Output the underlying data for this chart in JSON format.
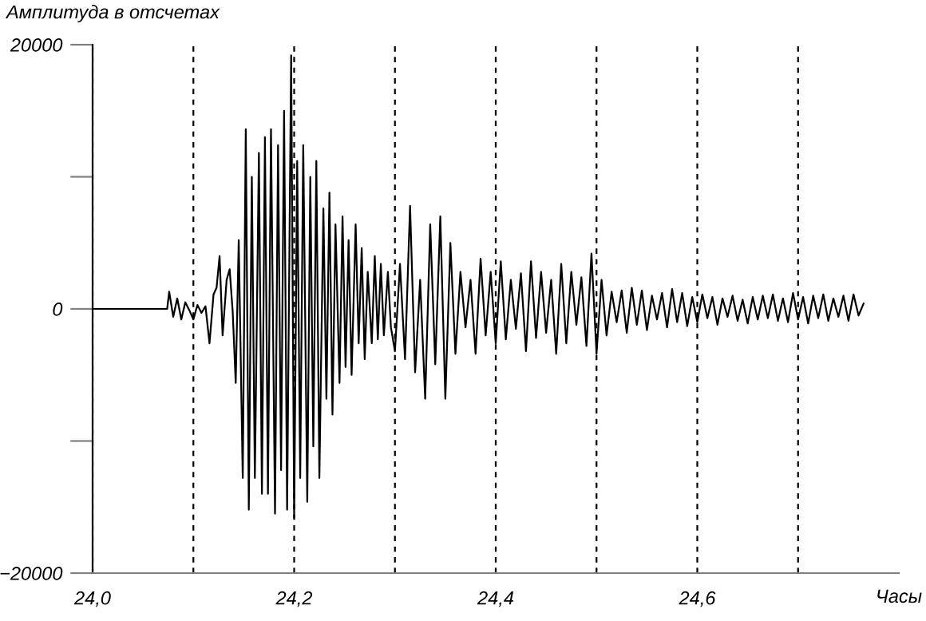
{
  "chart_data": {
    "type": "line",
    "ylabel": "Амплитуда в отсчетах",
    "xlabel": "Часы",
    "xlim": [
      24.0,
      24.8
    ],
    "ylim": [
      -20000,
      20000
    ],
    "xticks": [
      {
        "value": 24.0,
        "label": "24,0"
      },
      {
        "value": 24.1,
        "label": null
      },
      {
        "value": 24.2,
        "label": "24,2"
      },
      {
        "value": 24.3,
        "label": null
      },
      {
        "value": 24.4,
        "label": "24,4"
      },
      {
        "value": 24.5,
        "label": null
      },
      {
        "value": 24.6,
        "label": "24,6"
      },
      {
        "value": 24.7,
        "label": null
      }
    ],
    "yticks": [
      {
        "value": -20000,
        "label": "−20000"
      },
      {
        "value": -10000,
        "label": null
      },
      0,
      {
        "value": 10000,
        "label": null
      },
      20000
    ],
    "grid": "x",
    "marker": "none",
    "line_style": "solid",
    "series": [
      {
        "color": "#000000",
        "x": [
          24.0,
          24.074,
          24.076,
          24.08,
          24.084,
          24.088,
          24.092,
          24.096,
          24.1,
          24.104,
          24.108,
          24.112,
          24.116,
          24.12,
          24.123,
          24.126,
          24.129,
          24.133,
          24.136,
          24.139,
          24.142,
          24.145,
          24.149,
          24.152,
          24.155,
          24.158,
          24.161,
          24.165,
          24.168,
          24.171,
          24.174,
          24.177,
          24.181,
          24.184,
          24.187,
          24.19,
          24.193,
          24.197,
          24.2,
          24.203,
          24.206,
          24.209,
          24.213,
          24.216,
          24.219,
          24.222,
          24.225,
          24.229,
          24.232,
          24.235,
          24.238,
          24.241,
          24.245,
          24.248,
          24.251,
          24.254,
          24.257,
          24.261,
          24.264,
          24.267,
          24.27,
          24.273,
          24.277,
          24.28,
          24.283,
          24.286,
          24.289,
          24.293,
          24.296,
          24.3,
          24.305,
          24.31,
          24.315,
          24.32,
          24.325,
          24.33,
          24.335,
          24.34,
          24.345,
          24.35,
          24.355,
          24.36,
          24.365,
          24.37,
          24.375,
          24.38,
          24.385,
          24.39,
          24.395,
          24.4,
          24.405,
          24.41,
          24.415,
          24.42,
          24.425,
          24.43,
          24.435,
          24.44,
          24.445,
          24.45,
          24.455,
          24.46,
          24.465,
          24.47,
          24.475,
          24.48,
          24.485,
          24.49,
          24.495,
          24.5,
          24.505,
          24.51,
          24.515,
          24.52,
          24.525,
          24.53,
          24.535,
          24.54,
          24.545,
          24.55,
          24.555,
          24.56,
          24.565,
          24.57,
          24.575,
          24.58,
          24.585,
          24.59,
          24.595,
          24.6,
          24.605,
          24.61,
          24.615,
          24.62,
          24.625,
          24.63,
          24.635,
          24.64,
          24.645,
          24.65,
          24.655,
          24.66,
          24.665,
          24.67,
          24.675,
          24.68,
          24.685,
          24.69,
          24.695,
          24.7,
          24.705,
          24.71,
          24.715,
          24.72,
          24.725,
          24.73,
          24.735,
          24.74,
          24.745,
          24.75,
          24.755,
          24.76,
          24.765
        ],
        "values": [
          0,
          0,
          1300,
          -600,
          800,
          -800,
          500,
          -100,
          -800,
          300,
          -300,
          200,
          -2600,
          1100,
          1600,
          4000,
          -2000,
          2200,
          3000,
          -200,
          -5600,
          5200,
          -12800,
          13600,
          -15200,
          10000,
          -12800,
          11800,
          -14000,
          13000,
          -14000,
          13600,
          -15500,
          12400,
          -12200,
          15000,
          -15200,
          19200,
          -15800,
          11200,
          -12800,
          12400,
          -14600,
          10000,
          -10400,
          11200,
          -12800,
          7600,
          -6800,
          8800,
          -8000,
          6400,
          -5600,
          7000,
          -4400,
          5200,
          -5000,
          6400,
          -2600,
          4600,
          -3800,
          2800,
          -2600,
          4000,
          -2300,
          3400,
          -2000,
          2800,
          -1400,
          -3200,
          3400,
          -3800,
          7800,
          -4800,
          2200,
          -6800,
          6400,
          -4200,
          7000,
          -6800,
          5000,
          -3400,
          2800,
          -1400,
          2200,
          -3400,
          3800,
          -2000,
          2800,
          -2600,
          3600,
          -2300,
          2200,
          -1500,
          2700,
          -3200,
          3600,
          -2200,
          2800,
          -1800,
          2200,
          -3400,
          3400,
          -2600,
          2800,
          -1200,
          2400,
          -2800,
          4200,
          -3400,
          2200,
          -2000,
          1300,
          -1000,
          1400,
          -1800,
          1600,
          -1200,
          1400,
          -1600,
          1000,
          -800,
          1200,
          -1400,
          1500,
          -1000,
          1200,
          -1300,
          900,
          -1000,
          1100,
          -700,
          900,
          -1200,
          800,
          -600,
          1000,
          -900,
          700,
          -1100,
          900,
          -800,
          1000,
          -700,
          1100,
          -900,
          800,
          -1000,
          1200,
          -800,
          900,
          -1100,
          1000,
          -700,
          1100,
          -900,
          800,
          -600,
          1000,
          -900,
          1100,
          -500,
          400
        ]
      }
    ]
  }
}
